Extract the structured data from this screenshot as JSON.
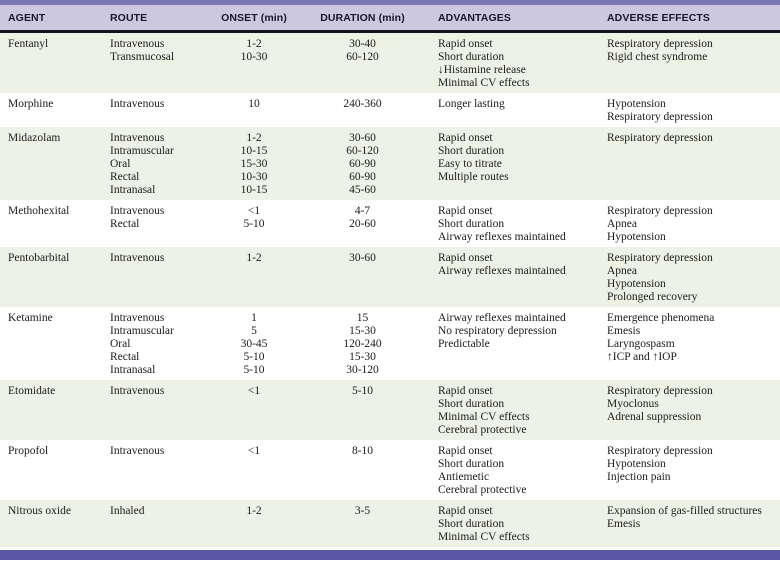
{
  "table": {
    "columns": [
      "AGENT",
      "ROUTE",
      "ONSET (min)",
      "DURATION (min)",
      "ADVANTAGES",
      "ADVERSE EFFECTS"
    ],
    "rows": [
      {
        "agent": "Fentanyl",
        "routes": [
          "Intravenous",
          "Transmucosal"
        ],
        "onset": [
          "1-2",
          "10-30"
        ],
        "duration": [
          "30-40",
          "60-120"
        ],
        "advantages": [
          "Rapid onset",
          "Short duration",
          "↓Histamine release",
          "Minimal CV effects"
        ],
        "adverse_effects": [
          "Respiratory depression",
          "Rigid chest syndrome"
        ]
      },
      {
        "agent": "Morphine",
        "routes": [
          "Intravenous"
        ],
        "onset": [
          "10"
        ],
        "duration": [
          "240-360"
        ],
        "advantages": [
          "Longer lasting"
        ],
        "adverse_effects": [
          "Hypotension",
          "Respiratory depression"
        ]
      },
      {
        "agent": "Midazolam",
        "routes": [
          "Intravenous",
          "Intramuscular",
          "Oral",
          "Rectal",
          "Intranasal"
        ],
        "onset": [
          "1-2",
          "10-15",
          "15-30",
          "10-30",
          "10-15"
        ],
        "duration": [
          "30-60",
          "60-120",
          "60-90",
          "60-90",
          "45-60"
        ],
        "advantages": [
          "Rapid onset",
          "Short duration",
          "Easy to titrate",
          "Multiple routes"
        ],
        "adverse_effects": [
          "Respiratory depression"
        ]
      },
      {
        "agent": "Methohexital",
        "routes": [
          "Intravenous",
          "Rectal"
        ],
        "onset": [
          "<1",
          "5-10"
        ],
        "duration": [
          "4-7",
          "20-60"
        ],
        "advantages": [
          "Rapid onset",
          "Short duration",
          "Airway reflexes maintained"
        ],
        "adverse_effects": [
          "Respiratory depression",
          "Apnea",
          "Hypotension"
        ]
      },
      {
        "agent": "Pentobarbital",
        "routes": [
          "Intravenous"
        ],
        "onset": [
          "1-2"
        ],
        "duration": [
          "30-60"
        ],
        "advantages": [
          "Rapid onset",
          "Airway reflexes maintained"
        ],
        "adverse_effects": [
          "Respiratory depression",
          "Apnea",
          "Hypotension",
          "Prolonged recovery"
        ]
      },
      {
        "agent": "Ketamine",
        "routes": [
          "Intravenous",
          "Intramuscular",
          "Oral",
          "Rectal",
          "Intranasal"
        ],
        "onset": [
          "1",
          "5",
          "30-45",
          "5-10",
          "5-10"
        ],
        "duration": [
          "15",
          "15-30",
          "120-240",
          "15-30",
          "30-120"
        ],
        "advantages": [
          "Airway reflexes maintained",
          "No respiratory depression",
          "Predictable"
        ],
        "adverse_effects": [
          "Emergence phenomena",
          "Emesis",
          "Laryngospasm",
          "↑ICP and ↑IOP"
        ]
      },
      {
        "agent": "Etomidate",
        "routes": [
          "Intravenous"
        ],
        "onset": [
          "<1"
        ],
        "duration": [
          "5-10"
        ],
        "advantages": [
          "Rapid onset",
          "Short duration",
          "Minimal CV effects",
          "Cerebral protective"
        ],
        "adverse_effects": [
          "Respiratory depression",
          "Myoclonus",
          "Adrenal suppression"
        ]
      },
      {
        "agent": "Propofol",
        "routes": [
          "Intravenous"
        ],
        "onset": [
          "<1"
        ],
        "duration": [
          "8-10"
        ],
        "advantages": [
          "Rapid onset",
          "Short duration",
          "Antiemetic",
          "Cerebral protective"
        ],
        "adverse_effects": [
          "Respiratory depression",
          "Hypotension",
          "Injection pain"
        ]
      },
      {
        "agent": "Nitrous oxide",
        "routes": [
          "Inhaled"
        ],
        "onset": [
          "1-2"
        ],
        "duration": [
          "3-5"
        ],
        "advantages": [
          "Rapid onset",
          "Short duration",
          "Minimal CV effects"
        ],
        "adverse_effects": [
          "Expansion of gas-filled structures",
          "Emesis"
        ]
      }
    ]
  },
  "colors": {
    "top_strip": "#7b77b2",
    "header_band": "#cbc8df",
    "header_rule": "#15151d",
    "row_shade": "#edf2e4",
    "row_plain": "#ffffff",
    "bottom_bar": "#5a57a5",
    "body_text": "#1b1b1b",
    "header_text": "#181828"
  }
}
